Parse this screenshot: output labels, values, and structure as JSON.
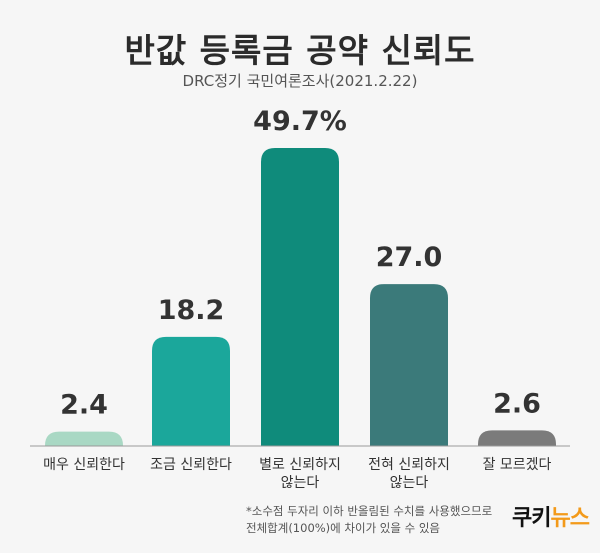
{
  "chart_data": {
    "type": "bar",
    "title": "반값 등록금 공약 신뢰도",
    "subtitle": "DRC정기 국민여론조사(2021.2.22)",
    "categories": [
      [
        "매우 신뢰한다"
      ],
      [
        "조금 신뢰한다"
      ],
      [
        "별로 신뢰하지",
        "않는다"
      ],
      [
        "전혀 신뢰하지",
        "않는다"
      ],
      [
        "잘 모르겠다"
      ]
    ],
    "values": [
      2.4,
      18.2,
      49.7,
      27.0,
      2.6
    ],
    "value_labels": [
      "2.4",
      "18.2",
      "49.7%",
      "27.0",
      "2.6"
    ],
    "colors": [
      "#a9d8c4",
      "#1ba79b",
      "#0f8b7b",
      "#3b7a7a",
      "#7b7b7b"
    ],
    "ylim": [
      0,
      50
    ],
    "grid": false,
    "xlabel": "",
    "ylabel": ""
  },
  "note": [
    "*소수점 두자리 이하 반올림된 수치를 사용했으므로",
    "전체합계(100%)에 차이가 있을 수 있음"
  ],
  "logo": {
    "part1": "쿠키",
    "part2": "뉴스"
  }
}
